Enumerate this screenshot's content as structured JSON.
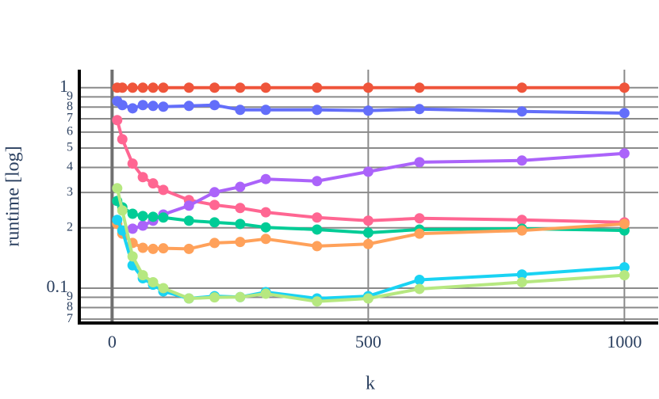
{
  "chart_data": {
    "type": "line",
    "xlabel": "k",
    "ylabel": "runtime [log]",
    "x": [
      10,
      20,
      40,
      60,
      80,
      100,
      150,
      200,
      250,
      300,
      400,
      500,
      600,
      800,
      1000
    ],
    "series": [
      {
        "color": "#ef553b",
        "values": [
          1,
          1,
          1,
          1,
          1,
          1,
          1,
          1,
          1,
          1,
          1,
          1,
          1,
          1,
          1
        ]
      },
      {
        "color": "#636efa",
        "values": [
          0.857,
          0.819,
          0.789,
          0.819,
          0.811,
          0.804,
          0.811,
          0.819,
          0.775,
          0.775,
          0.775,
          0.768,
          0.782,
          0.761,
          0.747
        ]
      },
      {
        "color": "#ff6692",
        "values": [
          0.689,
          0.553,
          0.418,
          0.358,
          0.333,
          0.309,
          0.275,
          0.26,
          0.251,
          0.239,
          0.225,
          0.217,
          0.223,
          0.219,
          0.213
        ]
      },
      {
        "color": "#ab63fa",
        "values": [
          null,
          null,
          0.198,
          0.205,
          0.217,
          0.233,
          0.258,
          0.301,
          0.32,
          0.35,
          0.342,
          0.381,
          0.425,
          0.433,
          0.47
        ]
      },
      {
        "color": "#00cc96",
        "values": [
          0.272,
          0.253,
          0.235,
          0.229,
          0.227,
          0.225,
          0.217,
          0.213,
          0.209,
          0.201,
          0.196,
          0.189,
          0.196,
          0.198,
          0.194
        ]
      },
      {
        "color": "#ffa15a",
        "values": [
          0.209,
          0.187,
          0.168,
          0.159,
          0.157,
          0.158,
          0.157,
          0.168,
          0.17,
          0.176,
          0.162,
          0.166,
          0.187,
          0.194,
          0.209
        ]
      },
      {
        "color": "#19d3f3",
        "values": [
          0.219,
          0.194,
          0.13,
          0.112,
          0.104,
          0.0964,
          0.0888,
          0.0912,
          0.0902,
          0.0955,
          0.0888,
          0.0912,
          0.11,
          0.117,
          0.127
        ]
      },
      {
        "color": "#b6e880",
        "values": [
          0.315,
          0.244,
          0.144,
          0.116,
          0.107,
          0.1,
          0.0888,
          0.0899,
          0.0902,
          0.0938,
          0.0858,
          0.0888,
          0.0991,
          0.107,
          0.116
        ]
      }
    ],
    "xlim": [
      -64,
      1066
    ],
    "xticks": [
      0,
      500,
      1000
    ],
    "ylim": [
      0.067,
      1.23
    ],
    "log_y": true,
    "yticks": [
      1,
      {
        "value": 0.9,
        "label": "9"
      },
      {
        "value": 0.8,
        "label": "8"
      },
      {
        "value": 0.7,
        "label": "7"
      },
      {
        "value": 0.6,
        "label": "6"
      },
      {
        "value": 0.5,
        "label": "5"
      },
      {
        "value": 0.4,
        "label": "4"
      },
      {
        "value": 0.3,
        "label": "3"
      },
      {
        "value": 0.2,
        "label": "2"
      },
      0.1,
      {
        "value": 0.09,
        "label": "9"
      },
      {
        "value": 0.08,
        "label": "8"
      },
      {
        "value": 0.07,
        "label": "7"
      }
    ],
    "grid": true
  }
}
